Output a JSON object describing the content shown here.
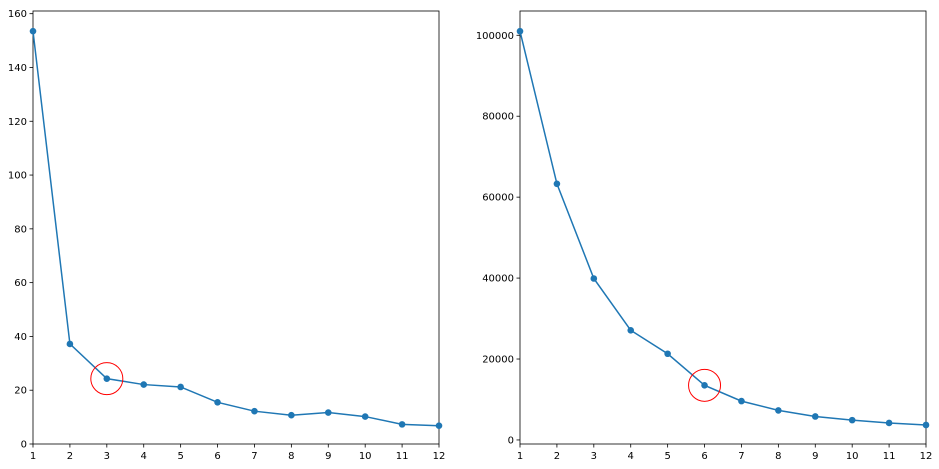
{
  "chart_data": [
    {
      "type": "line",
      "title": "",
      "xlabel": "",
      "ylabel": "",
      "x": [
        1,
        2,
        3,
        4,
        5,
        6,
        7,
        8,
        9,
        10,
        11,
        12
      ],
      "series": [
        {
          "values": [
            153.5,
            37.2,
            24.3,
            22.1,
            21.2,
            15.5,
            12.2,
            10.7,
            11.7,
            10.2,
            7.3,
            6.8
          ],
          "color": "#1f77b4"
        }
      ],
      "xlim": [
        1,
        12
      ],
      "ylim": [
        0,
        161
      ],
      "xticks": [
        1,
        2,
        3,
        4,
        5,
        6,
        7,
        8,
        9,
        10,
        11,
        12
      ],
      "yticks": [
        0,
        20,
        40,
        60,
        80,
        100,
        120,
        140,
        160
      ],
      "marker": "circle",
      "grid": false,
      "annotation": {
        "shape": "circle",
        "color": "#ff0000",
        "x": 3,
        "y": 24.3
      }
    },
    {
      "type": "line",
      "title": "",
      "xlabel": "",
      "ylabel": "",
      "x": [
        1,
        2,
        3,
        4,
        5,
        6,
        7,
        8,
        9,
        10,
        11,
        12
      ],
      "series": [
        {
          "values": [
            101000,
            63300,
            39900,
            27100,
            21300,
            13500,
            9600,
            7300,
            5800,
            4900,
            4200,
            3700
          ],
          "color": "#1f77b4"
        }
      ],
      "xlim": [
        1,
        12
      ],
      "ylim": [
        -1000,
        106000
      ],
      "xticks": [
        1,
        2,
        3,
        4,
        5,
        6,
        7,
        8,
        9,
        10,
        11,
        12
      ],
      "yticks": [
        0,
        20000,
        40000,
        60000,
        80000,
        100000
      ],
      "marker": "circle",
      "grid": false,
      "annotation": {
        "shape": "circle",
        "color": "#ff0000",
        "x": 6,
        "y": 13500
      }
    }
  ]
}
